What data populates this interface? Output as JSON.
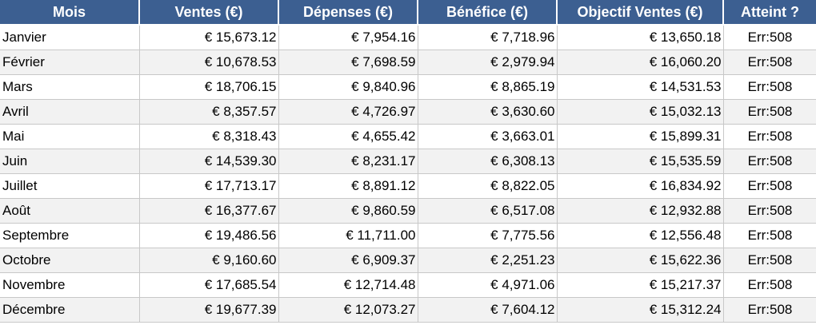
{
  "header": {
    "mois": "Mois",
    "ventes": "Ventes (€)",
    "depenses": "Dépenses (€)",
    "benefice": "Bénéfice (€)",
    "objectif": "Objectif Ventes (€)",
    "atteint": "Atteint ?"
  },
  "rows": [
    {
      "mois": "Janvier",
      "ventes": "€ 15,673.12",
      "depenses": "€ 7,954.16",
      "benefice": "€ 7,718.96",
      "objectif": "€ 13,650.18",
      "atteint": "Err:508"
    },
    {
      "mois": "Février",
      "ventes": "€ 10,678.53",
      "depenses": "€ 7,698.59",
      "benefice": "€ 2,979.94",
      "objectif": "€ 16,060.20",
      "atteint": "Err:508"
    },
    {
      "mois": "Mars",
      "ventes": "€ 18,706.15",
      "depenses": "€ 9,840.96",
      "benefice": "€ 8,865.19",
      "objectif": "€ 14,531.53",
      "atteint": "Err:508"
    },
    {
      "mois": "Avril",
      "ventes": "€ 8,357.57",
      "depenses": "€ 4,726.97",
      "benefice": "€ 3,630.60",
      "objectif": "€ 15,032.13",
      "atteint": "Err:508"
    },
    {
      "mois": "Mai",
      "ventes": "€ 8,318.43",
      "depenses": "€ 4,655.42",
      "benefice": "€ 3,663.01",
      "objectif": "€ 15,899.31",
      "atteint": "Err:508"
    },
    {
      "mois": "Juin",
      "ventes": "€ 14,539.30",
      "depenses": "€ 8,231.17",
      "benefice": "€ 6,308.13",
      "objectif": "€ 15,535.59",
      "atteint": "Err:508"
    },
    {
      "mois": "Juillet",
      "ventes": "€ 17,713.17",
      "depenses": "€ 8,891.12",
      "benefice": "€ 8,822.05",
      "objectif": "€ 16,834.92",
      "atteint": "Err:508"
    },
    {
      "mois": "Août",
      "ventes": "€ 16,377.67",
      "depenses": "€ 9,860.59",
      "benefice": "€ 6,517.08",
      "objectif": "€ 12,932.88",
      "atteint": "Err:508"
    },
    {
      "mois": "Septembre",
      "ventes": "€ 19,486.56",
      "depenses": "€ 11,711.00",
      "benefice": "€ 7,775.56",
      "objectif": "€ 12,556.48",
      "atteint": "Err:508"
    },
    {
      "mois": "Octobre",
      "ventes": "€ 9,160.60",
      "depenses": "€ 6,909.37",
      "benefice": "€ 2,251.23",
      "objectif": "€ 15,622.36",
      "atteint": "Err:508"
    },
    {
      "mois": "Novembre",
      "ventes": "€ 17,685.54",
      "depenses": "€ 12,714.48",
      "benefice": "€ 4,971.06",
      "objectif": "€ 15,217.37",
      "atteint": "Err:508"
    },
    {
      "mois": "Décembre",
      "ventes": "€ 19,677.39",
      "depenses": "€ 12,073.27",
      "benefice": "€ 7,604.12",
      "objectif": "€ 15,312.24",
      "atteint": "Err:508"
    }
  ],
  "colors": {
    "header_bg": "#3c5f91",
    "header_text": "#ffffff",
    "row_even_bg": "#f2f2f2",
    "row_odd_bg": "#ffffff",
    "grid_line": "#c8c8c8"
  }
}
